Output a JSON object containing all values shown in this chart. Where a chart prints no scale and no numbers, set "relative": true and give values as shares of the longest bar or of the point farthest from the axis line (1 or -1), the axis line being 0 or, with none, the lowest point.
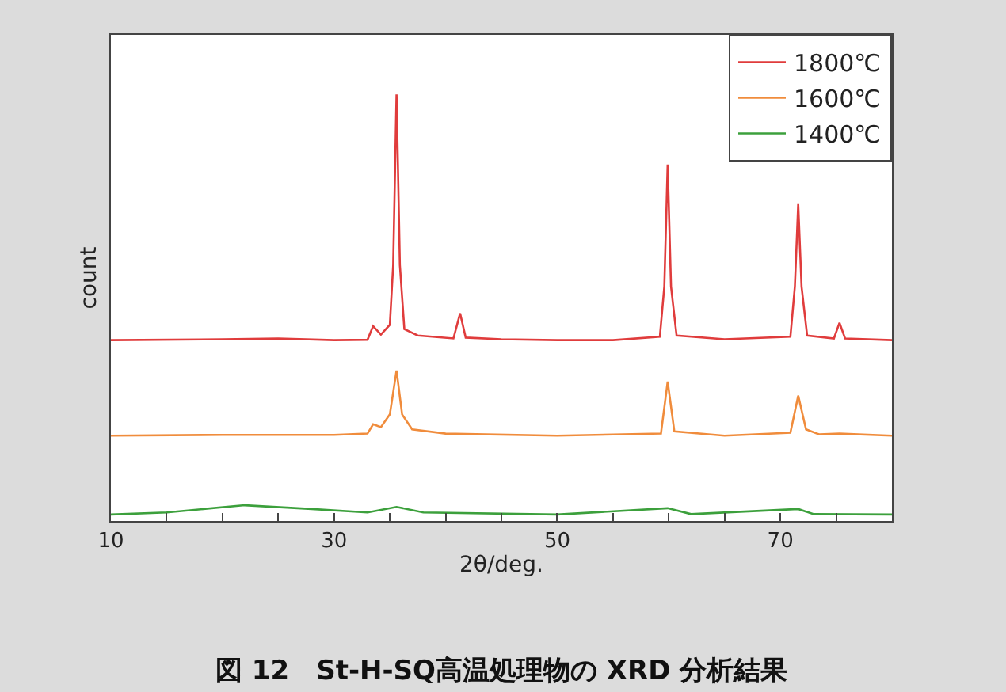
{
  "chart_data": {
    "type": "line",
    "title": "図 12　St-H-SQ高温処理物の XRD 分析結果",
    "xlabel": "2θ/deg.",
    "ylabel": "count",
    "relative": true,
    "legend": "top right",
    "marker": "none",
    "line_style": "solid",
    "xlim": [
      10,
      80
    ],
    "xticks": [
      10,
      {
        "value": 15,
        "label": null
      },
      {
        "value": 20,
        "label": null
      },
      {
        "value": 25,
        "label": null
      },
      30,
      {
        "value": 35,
        "label": null
      },
      {
        "value": 40,
        "label": null
      },
      {
        "value": 45,
        "label": null
      },
      50,
      {
        "value": 55,
        "label": null
      },
      {
        "value": 60,
        "label": null
      },
      {
        "value": 65,
        "label": null
      },
      70,
      {
        "value": 75,
        "label": null
      }
    ],
    "series": [
      {
        "name": "1800℃",
        "color": "#e03c3c",
        "x": [
          10,
          20,
          25,
          30,
          33,
          33.5,
          34.2,
          35.0,
          35.3,
          35.6,
          35.9,
          36.3,
          37.5,
          40.7,
          41.3,
          41.8,
          45,
          50,
          55,
          59.2,
          59.6,
          59.9,
          60.2,
          60.7,
          65,
          70.9,
          71.3,
          71.6,
          71.9,
          72.4,
          74.8,
          75.3,
          75.8,
          80
        ],
        "values": [
          0.424,
          0.426,
          0.428,
          0.424,
          0.425,
          0.457,
          0.437,
          0.46,
          0.6,
          1.0,
          0.6,
          0.45,
          0.435,
          0.428,
          0.487,
          0.43,
          0.426,
          0.424,
          0.424,
          0.432,
          0.55,
          0.836,
          0.55,
          0.435,
          0.426,
          0.432,
          0.55,
          0.743,
          0.55,
          0.435,
          0.428,
          0.465,
          0.428,
          0.424
        ]
      },
      {
        "name": "1600℃",
        "color": "#f08c3c",
        "x": [
          10,
          20,
          30,
          33,
          33.5,
          34.2,
          35.0,
          35.6,
          36.1,
          37,
          40,
          50,
          59.3,
          59.9,
          60.5,
          65,
          70.9,
          71.6,
          72.3,
          73.5,
          75.3,
          80
        ],
        "values": [
          0.2,
          0.202,
          0.202,
          0.205,
          0.227,
          0.22,
          0.25,
          0.353,
          0.25,
          0.215,
          0.205,
          0.2,
          0.205,
          0.327,
          0.21,
          0.2,
          0.207,
          0.294,
          0.215,
          0.203,
          0.205,
          0.2
        ]
      },
      {
        "name": "1400℃",
        "color": "#3ca03c",
        "x": [
          10,
          15,
          22,
          28,
          33,
          35.6,
          38,
          50,
          59.9,
          62,
          71.6,
          73,
          80
        ],
        "values": [
          0.015,
          0.02,
          0.037,
          0.028,
          0.02,
          0.033,
          0.02,
          0.015,
          0.03,
          0.016,
          0.028,
          0.016,
          0.015
        ]
      }
    ]
  }
}
